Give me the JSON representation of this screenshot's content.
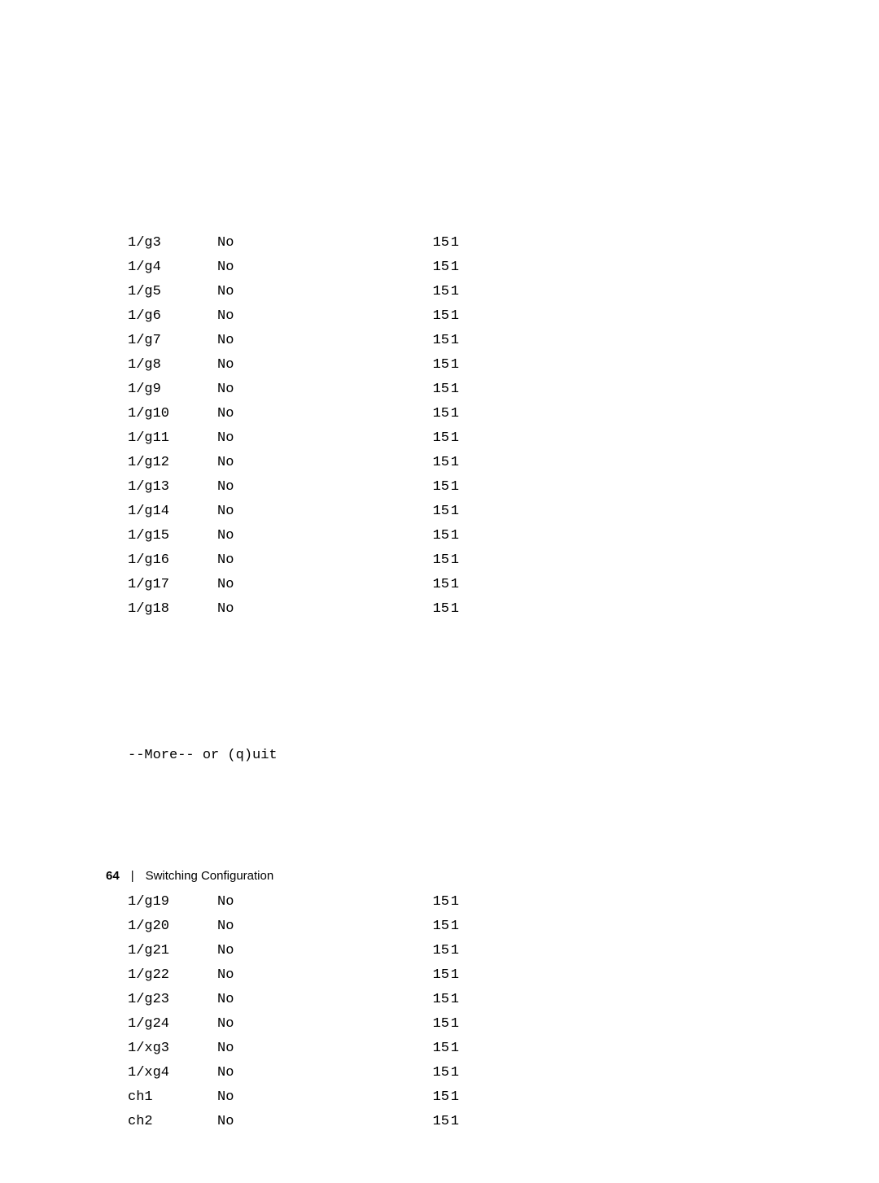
{
  "font": {
    "mono_family": "Courier New",
    "mono_size_pt": 13,
    "sans_family": "Arial",
    "footer_size_pt": 11
  },
  "colors": {
    "background": "#ffffff",
    "text": "#000000"
  },
  "table_top": {
    "rows": [
      {
        "c1": "1/g3",
        "c2": "No",
        "c3": "15",
        "c4": "1"
      },
      {
        "c1": "1/g4",
        "c2": "No",
        "c3": "15",
        "c4": "1"
      },
      {
        "c1": "1/g5",
        "c2": "No",
        "c3": "15",
        "c4": "1"
      },
      {
        "c1": "1/g6",
        "c2": "No",
        "c3": "15",
        "c4": "1"
      },
      {
        "c1": "1/g7",
        "c2": "No",
        "c3": "15",
        "c4": "1"
      },
      {
        "c1": "1/g8",
        "c2": "No",
        "c3": "15",
        "c4": "1"
      },
      {
        "c1": "1/g9",
        "c2": "No",
        "c3": "15",
        "c4": "1"
      },
      {
        "c1": "1/g10",
        "c2": "No",
        "c3": "15",
        "c4": "1"
      },
      {
        "c1": "1/g11",
        "c2": "No",
        "c3": "15",
        "c4": "1"
      },
      {
        "c1": "1/g12",
        "c2": "No",
        "c3": "15",
        "c4": "1"
      },
      {
        "c1": "1/g13",
        "c2": "No",
        "c3": "15",
        "c4": "1"
      },
      {
        "c1": "1/g14",
        "c2": "No",
        "c3": "15",
        "c4": "1"
      },
      {
        "c1": "1/g15",
        "c2": "No",
        "c3": "15",
        "c4": "1"
      },
      {
        "c1": "1/g16",
        "c2": "No",
        "c3": "15",
        "c4": "1"
      },
      {
        "c1": "1/g17",
        "c2": "No",
        "c3": "15",
        "c4": "1"
      },
      {
        "c1": "1/g18",
        "c2": "No",
        "c3": "15",
        "c4": "1"
      }
    ]
  },
  "more_prompt": "--More-- or (q)uit",
  "table_bottom": {
    "rows": [
      {
        "c1": "1/g19",
        "c2": "No",
        "c3": "15",
        "c4": "1"
      },
      {
        "c1": "1/g20",
        "c2": "No",
        "c3": "15",
        "c4": "1"
      },
      {
        "c1": "1/g21",
        "c2": "No",
        "c3": "15",
        "c4": "1"
      },
      {
        "c1": "1/g22",
        "c2": "No",
        "c3": "15",
        "c4": "1"
      },
      {
        "c1": "1/g23",
        "c2": "No",
        "c3": "15",
        "c4": "1"
      },
      {
        "c1": "1/g24",
        "c2": "No",
        "c3": "15",
        "c4": "1"
      },
      {
        "c1": "1/xg3",
        "c2": "No",
        "c3": "15",
        "c4": "1"
      },
      {
        "c1": "1/xg4",
        "c2": "No",
        "c3": "15",
        "c4": "1"
      },
      {
        "c1": "ch1",
        "c2": "No",
        "c3": "15",
        "c4": "1"
      },
      {
        "c1": "ch2",
        "c2": "No",
        "c3": "15",
        "c4": "1"
      }
    ]
  },
  "footer": {
    "page_number": "64",
    "separator": "|",
    "section": "Switching Configuration"
  }
}
